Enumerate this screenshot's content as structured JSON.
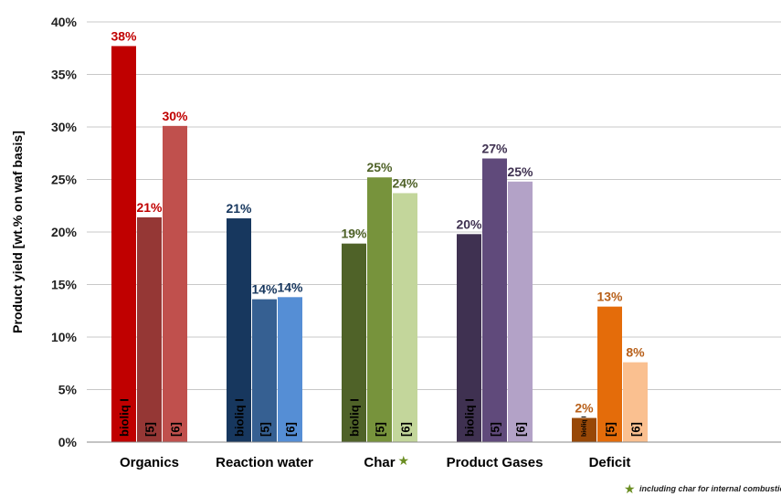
{
  "chart_data": {
    "type": "bar",
    "title": "",
    "xlabel": "",
    "ylabel": "Product yield [wt.% on waf basis]",
    "ylim": [
      0,
      40
    ],
    "yticks": [
      "0%",
      "5%",
      "10%",
      "15%",
      "20%",
      "25%",
      "30%",
      "35%",
      "40%"
    ],
    "grid": true,
    "bar_labels": [
      "bioliq I",
      "[5]",
      "[6]"
    ],
    "categories": [
      {
        "name": "Organics",
        "star": false,
        "values": [
          37.7,
          21.4,
          30.1
        ],
        "labels": [
          "38%",
          "21%",
          "30%"
        ],
        "colors": [
          "#c00000",
          "#953735",
          "#c0504d"
        ],
        "label_color": "#c00000"
      },
      {
        "name": "Reaction water",
        "star": false,
        "values": [
          21.3,
          13.6,
          13.8
        ],
        "labels": [
          "21%",
          "14%",
          "14%"
        ],
        "colors": [
          "#17375e",
          "#366092",
          "#558ed5"
        ],
        "label_color": "#17375e"
      },
      {
        "name": "Char",
        "star": true,
        "values": [
          18.9,
          25.2,
          23.7
        ],
        "labels": [
          "19%",
          "25%",
          "24%"
        ],
        "colors": [
          "#4f6228",
          "#77933c",
          "#c3d69b"
        ],
        "label_color": "#4f6228"
      },
      {
        "name": "Product Gases",
        "star": false,
        "values": [
          19.8,
          27.0,
          24.8
        ],
        "labels": [
          "20%",
          "27%",
          "25%"
        ],
        "colors": [
          "#3f3151",
          "#604a7b",
          "#b3a2c7"
        ],
        "label_color": "#3f3151"
      },
      {
        "name": "Deficit",
        "star": false,
        "values": [
          2.3,
          12.9,
          7.6
        ],
        "labels": [
          "2%",
          "13%",
          "8%"
        ],
        "colors": [
          "#984807",
          "#e46c0a",
          "#fac090"
        ],
        "label_color": "#b8601a"
      }
    ],
    "footnote": "including char for internal combustion"
  }
}
